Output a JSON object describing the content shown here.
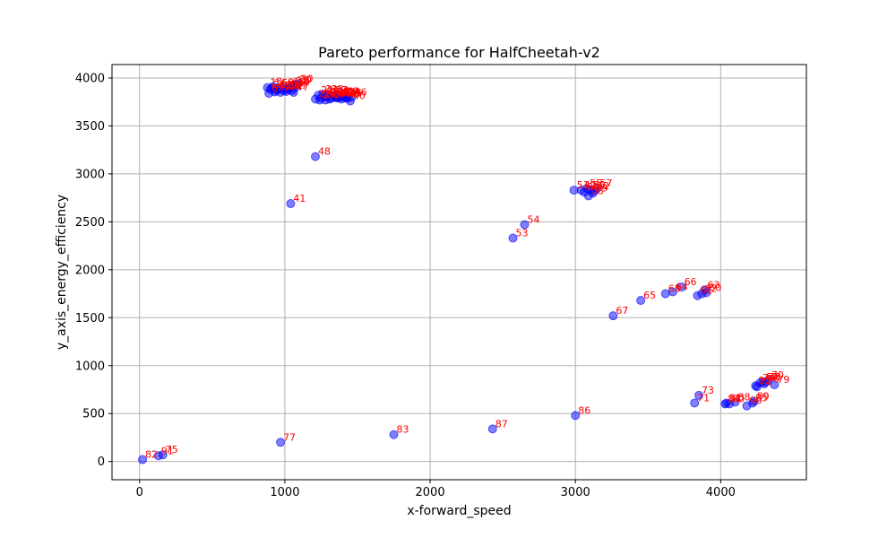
{
  "chart_data": {
    "type": "scatter",
    "title": "Pareto performance for HalfCheetah-v2",
    "xlabel": "x-forward_speed",
    "ylabel": "y_axis_energy_efficiency",
    "xlim": [
      -190,
      4590
    ],
    "ylim": [
      -190,
      4140
    ],
    "xticks": [
      0,
      1000,
      2000,
      3000,
      4000
    ],
    "yticks": [
      0,
      500,
      1000,
      1500,
      2000,
      2500,
      3000,
      3500,
      4000
    ],
    "grid": true,
    "colors": {
      "point": "#0000ff",
      "label": "#ff0000",
      "grid": "#b0b0b0"
    },
    "points": [
      {
        "x": 880,
        "y": 3900,
        "label": "1"
      },
      {
        "x": 900,
        "y": 3880,
        "label": "2"
      },
      {
        "x": 920,
        "y": 3910,
        "label": "3"
      },
      {
        "x": 940,
        "y": 3870,
        "label": "4"
      },
      {
        "x": 960,
        "y": 3895,
        "label": "5"
      },
      {
        "x": 890,
        "y": 3840,
        "label": "6"
      },
      {
        "x": 970,
        "y": 3850,
        "label": "7"
      },
      {
        "x": 1000,
        "y": 3900,
        "label": "8"
      },
      {
        "x": 1020,
        "y": 3880,
        "label": "9"
      },
      {
        "x": 1040,
        "y": 3910,
        "label": "10"
      },
      {
        "x": 930,
        "y": 3855,
        "label": "11"
      },
      {
        "x": 950,
        "y": 3880,
        "label": "12"
      },
      {
        "x": 990,
        "y": 3870,
        "label": "13"
      },
      {
        "x": 1010,
        "y": 3860,
        "label": "14"
      },
      {
        "x": 1030,
        "y": 3890,
        "label": "15"
      },
      {
        "x": 910,
        "y": 3895,
        "label": "16"
      },
      {
        "x": 1050,
        "y": 3870,
        "label": "17"
      },
      {
        "x": 1060,
        "y": 3920,
        "label": "18"
      },
      {
        "x": 1070,
        "y": 3900,
        "label": "19"
      },
      {
        "x": 1080,
        "y": 3930,
        "label": "20"
      },
      {
        "x": 1210,
        "y": 3780,
        "label": "21"
      },
      {
        "x": 1230,
        "y": 3820,
        "label": "22"
      },
      {
        "x": 1250,
        "y": 3790,
        "label": "23"
      },
      {
        "x": 1270,
        "y": 3810,
        "label": "24"
      },
      {
        "x": 1290,
        "y": 3800,
        "label": "25"
      },
      {
        "x": 1310,
        "y": 3780,
        "label": "26"
      },
      {
        "x": 1330,
        "y": 3820,
        "label": "27"
      },
      {
        "x": 1350,
        "y": 3800,
        "label": "28"
      },
      {
        "x": 1240,
        "y": 3770,
        "label": "29"
      },
      {
        "x": 1090,
        "y": 3940,
        "label": "30"
      },
      {
        "x": 1260,
        "y": 3830,
        "label": "31"
      },
      {
        "x": 1280,
        "y": 3770,
        "label": "32"
      },
      {
        "x": 1300,
        "y": 3830,
        "label": "33"
      },
      {
        "x": 1320,
        "y": 3790,
        "label": "34"
      },
      {
        "x": 1340,
        "y": 3810,
        "label": "35"
      },
      {
        "x": 1360,
        "y": 3790,
        "label": "36"
      },
      {
        "x": 1380,
        "y": 3800,
        "label": "37"
      },
      {
        "x": 1400,
        "y": 3810,
        "label": "38"
      },
      {
        "x": 1420,
        "y": 3790,
        "label": "39"
      },
      {
        "x": 1450,
        "y": 3760,
        "label": "40"
      },
      {
        "x": 1040,
        "y": 2690,
        "label": "41"
      },
      {
        "x": 1370,
        "y": 3800,
        "label": "42"
      },
      {
        "x": 1390,
        "y": 3780,
        "label": "43"
      },
      {
        "x": 1410,
        "y": 3810,
        "label": "44"
      },
      {
        "x": 1430,
        "y": 3790,
        "label": "45"
      },
      {
        "x": 1460,
        "y": 3800,
        "label": "46"
      },
      {
        "x": 1060,
        "y": 3850,
        "label": "47"
      },
      {
        "x": 1210,
        "y": 3180,
        "label": "48"
      },
      {
        "x": 3040,
        "y": 2830,
        "label": "49"
      },
      {
        "x": 3060,
        "y": 2810,
        "label": "50"
      },
      {
        "x": 2990,
        "y": 2830,
        "label": "51"
      },
      {
        "x": 3130,
        "y": 2820,
        "label": "52"
      },
      {
        "x": 2570,
        "y": 2330,
        "label": "53"
      },
      {
        "x": 2650,
        "y": 2470,
        "label": "54"
      },
      {
        "x": 3080,
        "y": 2850,
        "label": "55"
      },
      {
        "x": 3100,
        "y": 2830,
        "label": "56"
      },
      {
        "x": 3150,
        "y": 2850,
        "label": "57"
      },
      {
        "x": 3090,
        "y": 2770,
        "label": "58"
      },
      {
        "x": 3120,
        "y": 2800,
        "label": "59"
      },
      {
        "x": 3900,
        "y": 1760,
        "label": "60"
      },
      {
        "x": 3840,
        "y": 1730,
        "label": "61"
      },
      {
        "x": 3870,
        "y": 1750,
        "label": "62"
      },
      {
        "x": 3890,
        "y": 1790,
        "label": "63"
      },
      {
        "x": 3670,
        "y": 1770,
        "label": "64"
      },
      {
        "x": 3450,
        "y": 1680,
        "label": "65"
      },
      {
        "x": 3730,
        "y": 1820,
        "label": "66"
      },
      {
        "x": 3260,
        "y": 1520,
        "label": "67"
      },
      {
        "x": 3620,
        "y": 1750,
        "label": "68"
      },
      {
        "x": 4290,
        "y": 830,
        "label": "69"
      },
      {
        "x": 4330,
        "y": 850,
        "label": "70"
      },
      {
        "x": 3820,
        "y": 610,
        "label": "71"
      },
      {
        "x": 4250,
        "y": 780,
        "label": "72"
      },
      {
        "x": 3850,
        "y": 690,
        "label": "73"
      },
      {
        "x": 4270,
        "y": 820,
        "label": "74"
      },
      {
        "x": 160,
        "y": 70,
        "label": "75"
      },
      {
        "x": 4300,
        "y": 810,
        "label": "76"
      },
      {
        "x": 970,
        "y": 200,
        "label": "77"
      },
      {
        "x": 4310,
        "y": 830,
        "label": "78"
      },
      {
        "x": 4370,
        "y": 800,
        "label": "79"
      },
      {
        "x": 4060,
        "y": 600,
        "label": "80"
      },
      {
        "x": 4040,
        "y": 610,
        "label": "81"
      },
      {
        "x": 20,
        "y": 20,
        "label": "82"
      },
      {
        "x": 1750,
        "y": 280,
        "label": "83"
      },
      {
        "x": 4030,
        "y": 600,
        "label": "84"
      },
      {
        "x": 4220,
        "y": 610,
        "label": "85"
      },
      {
        "x": 3000,
        "y": 480,
        "label": "86"
      },
      {
        "x": 2430,
        "y": 340,
        "label": "87"
      },
      {
        "x": 4100,
        "y": 620,
        "label": "88"
      },
      {
        "x": 4230,
        "y": 630,
        "label": "89"
      },
      {
        "x": 4180,
        "y": 580,
        "label": "90"
      },
      {
        "x": 130,
        "y": 60,
        "label": "91"
      },
      {
        "x": 4240,
        "y": 790,
        "label": "92"
      }
    ]
  }
}
